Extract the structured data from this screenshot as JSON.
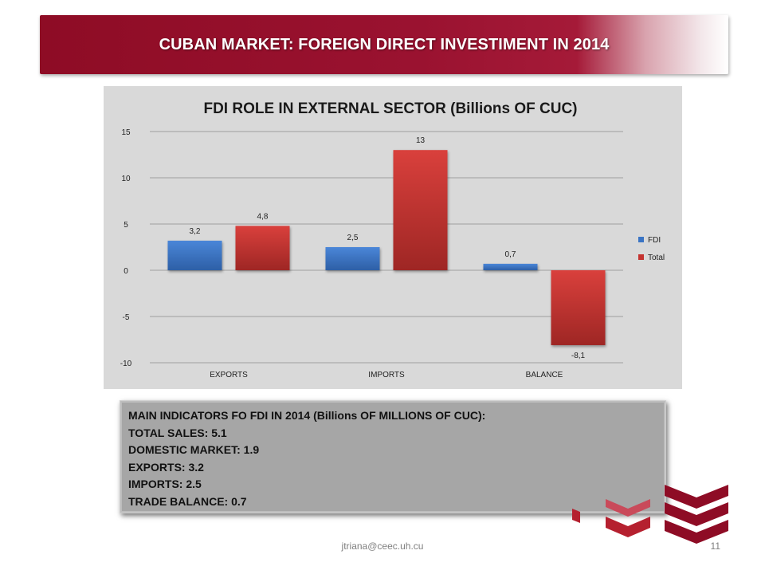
{
  "slide": {
    "title": "CUBAN MARKET: FOREIGN DIRECT INVESTIMENT IN 2014",
    "footer_email": "jtriana@ceec.uh.cu",
    "page_number": "11"
  },
  "info_box": {
    "lines": [
      "MAIN INDICATORS FO FDI IN 2014 (Billions OF MILLIONS OF CUC):",
      "TOTAL SALES: 5.1",
      "DOMESTIC MARKET: 1.9",
      "EXPORTS: 3.2",
      "IMPORTS: 2.5",
      "TRADE BALANCE: 0.7"
    ]
  },
  "colors": {
    "banner": "#9a1230",
    "fdi": "#3a74c4",
    "total": "#c43330",
    "chart_bg": "#d9d9d9",
    "info_bg": "#a6a6a6"
  },
  "chart_data": {
    "type": "bar",
    "title": "FDI ROLE IN EXTERNAL SECTOR (Billions OF CUC)",
    "categories": [
      "EXPORTS",
      "IMPORTS",
      "BALANCE"
    ],
    "series": [
      {
        "name": "FDI",
        "values": [
          3.2,
          2.5,
          0.7
        ],
        "labels": [
          "3,2",
          "2,5",
          "0,7"
        ]
      },
      {
        "name": "Total",
        "values": [
          4.8,
          13,
          -8.1
        ],
        "labels": [
          "4,8",
          "13",
          "-8,1"
        ]
      }
    ],
    "ylim": [
      -10,
      15
    ],
    "yticks": [
      "-10",
      "-5",
      "0",
      "5",
      "10",
      "15"
    ],
    "xlabel": "",
    "ylabel": "",
    "grid": true,
    "legend": "right"
  }
}
